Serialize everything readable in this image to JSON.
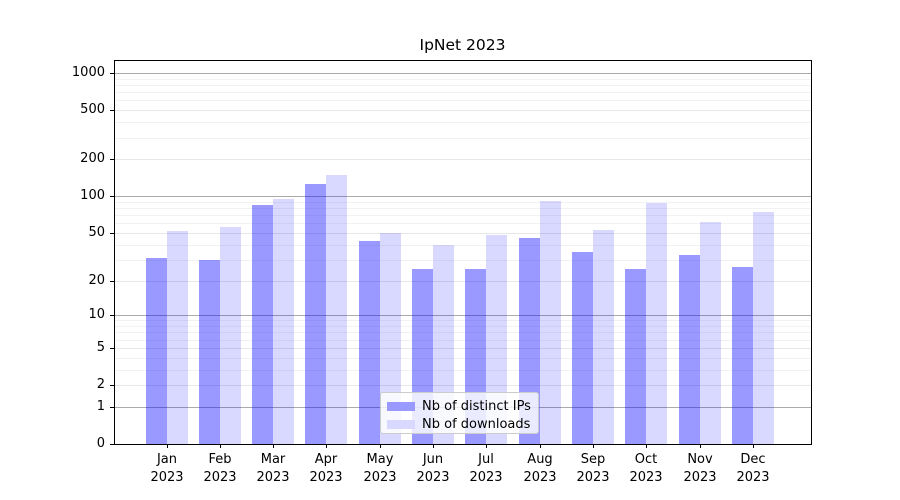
{
  "chart_data": {
    "type": "bar",
    "title": "IpNet 2023",
    "categories": [
      "Jan 2023",
      "Feb 2023",
      "Mar 2023",
      "Apr 2023",
      "May 2023",
      "Jun 2023",
      "Jul 2023",
      "Aug 2023",
      "Sep 2023",
      "Oct 2023",
      "Nov 2023",
      "Dec 2023"
    ],
    "x_tick_month": [
      "Jan",
      "Feb",
      "Mar",
      "Apr",
      "May",
      "Jun",
      "Jul",
      "Aug",
      "Sep",
      "Oct",
      "Nov",
      "Dec"
    ],
    "x_tick_year": "2023",
    "series": [
      {
        "name": "Nb of distinct IPs",
        "color": "rgba(0,0,255,0.4)",
        "color_on_white": "#9999ff",
        "values": [
          31,
          30,
          85,
          125,
          43,
          25,
          25,
          45,
          35,
          25,
          33,
          26
        ]
      },
      {
        "name": "Nb of downloads",
        "color": "rgba(0,0,255,0.15)",
        "color_on_white": "#d9d9ff",
        "values": [
          52,
          56,
          95,
          150,
          50,
          40,
          48,
          92,
          53,
          88,
          61,
          74
        ]
      }
    ],
    "xlabel": "",
    "ylabel": "",
    "yscale": "log10(1+value)",
    "y_ticks": [
      0,
      1,
      2,
      5,
      10,
      20,
      50,
      100,
      200,
      500,
      1000
    ],
    "ylim": [
      0,
      1260
    ],
    "grid": true,
    "legend_position": "lower center",
    "colors": {
      "axis": "#000000",
      "grid_major": "#ababab",
      "grid_mid": "#e7e7e7",
      "grid_minor": "#f2f2f2",
      "background": "#ffffff"
    }
  }
}
